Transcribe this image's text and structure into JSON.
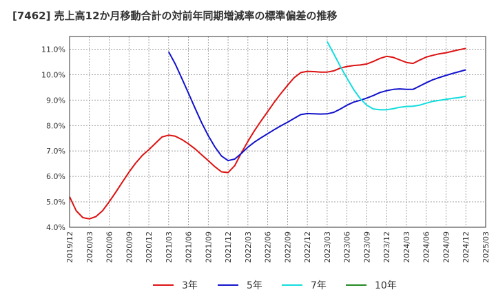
{
  "chart_data": {
    "type": "line",
    "title": "[7462]  売上高12か月移動合計の対前年同期増減率の標準偏差の推移",
    "x_ticks": [
      "2019/12",
      "2020/03",
      "2020/06",
      "2020/09",
      "2020/12",
      "2021/03",
      "2021/06",
      "2021/09",
      "2021/12",
      "2022/03",
      "2022/06",
      "2022/09",
      "2022/12",
      "2023/03",
      "2023/06",
      "2023/09",
      "2023/12",
      "2024/03",
      "2024/06",
      "2024/09",
      "2024/12",
      "2025/03"
    ],
    "y_ticks": [
      "4.0%",
      "5.0%",
      "6.0%",
      "7.0%",
      "8.0%",
      "9.0%",
      "10.0%",
      "11.0%"
    ],
    "ylim": [
      4.0,
      11.5
    ],
    "grid": true,
    "legend_position": "bottom",
    "series": [
      {
        "name": "3年",
        "color": "#dd1111",
        "x": [
          "2019/12",
          "2020/01",
          "2020/02",
          "2020/03",
          "2020/04",
          "2020/05",
          "2020/06",
          "2020/07",
          "2020/08",
          "2020/09",
          "2020/10",
          "2020/11",
          "2020/12",
          "2021/01",
          "2021/02",
          "2021/03",
          "2021/04",
          "2021/05",
          "2021/06",
          "2021/07",
          "2021/08",
          "2021/09",
          "2021/10",
          "2021/11",
          "2021/12",
          "2022/01",
          "2022/02",
          "2022/03",
          "2022/04",
          "2022/05",
          "2022/06",
          "2022/07",
          "2022/08",
          "2022/09",
          "2022/10",
          "2022/11",
          "2022/12",
          "2023/01",
          "2023/02",
          "2023/03",
          "2023/04",
          "2023/05",
          "2023/06",
          "2023/07",
          "2023/08",
          "2023/09",
          "2023/10",
          "2023/11",
          "2023/12",
          "2024/01",
          "2024/02",
          "2024/03",
          "2024/04",
          "2024/05",
          "2024/06",
          "2024/07",
          "2024/08",
          "2024/09",
          "2024/10",
          "2024/11",
          "2024/12"
        ],
        "values": [
          5.2,
          4.65,
          4.38,
          4.33,
          4.42,
          4.65,
          5.0,
          5.38,
          5.78,
          6.17,
          6.52,
          6.82,
          7.05,
          7.3,
          7.55,
          7.62,
          7.58,
          7.45,
          7.28,
          7.08,
          6.85,
          6.62,
          6.38,
          6.18,
          6.15,
          6.42,
          6.92,
          7.38,
          7.8,
          8.18,
          8.55,
          8.92,
          9.26,
          9.58,
          9.88,
          10.08,
          10.13,
          10.12,
          10.1,
          10.1,
          10.15,
          10.26,
          10.32,
          10.36,
          10.38,
          10.42,
          10.52,
          10.64,
          10.72,
          10.68,
          10.58,
          10.48,
          10.44,
          10.57,
          10.69,
          10.76,
          10.82,
          10.86,
          10.92,
          10.98,
          11.03
        ]
      },
      {
        "name": "5年",
        "color": "#1111cc",
        "x": [
          "2021/03",
          "2021/04",
          "2021/05",
          "2021/06",
          "2021/07",
          "2021/08",
          "2021/09",
          "2021/10",
          "2021/11",
          "2021/12",
          "2022/01",
          "2022/02",
          "2022/03",
          "2022/04",
          "2022/05",
          "2022/06",
          "2022/07",
          "2022/08",
          "2022/09",
          "2022/10",
          "2022/11",
          "2022/12",
          "2023/01",
          "2023/02",
          "2023/03",
          "2023/04",
          "2023/05",
          "2023/06",
          "2023/07",
          "2023/08",
          "2023/09",
          "2023/10",
          "2023/11",
          "2023/12",
          "2024/01",
          "2024/02",
          "2024/03",
          "2024/04",
          "2024/05",
          "2024/06",
          "2024/07",
          "2024/08",
          "2024/09",
          "2024/10",
          "2024/11",
          "2024/12"
        ],
        "values": [
          10.9,
          10.42,
          9.85,
          9.27,
          8.68,
          8.11,
          7.6,
          7.16,
          6.8,
          6.62,
          6.68,
          6.9,
          7.15,
          7.35,
          7.52,
          7.68,
          7.84,
          7.99,
          8.13,
          8.28,
          8.43,
          8.47,
          8.46,
          8.45,
          8.46,
          8.52,
          8.65,
          8.8,
          8.92,
          8.99,
          9.08,
          9.18,
          9.3,
          9.37,
          9.42,
          9.44,
          9.42,
          9.42,
          9.55,
          9.68,
          9.8,
          9.89,
          9.97,
          10.05,
          10.12,
          10.19
        ]
      },
      {
        "name": "7年",
        "color": "#11dddd",
        "x": [
          "2023/03",
          "2023/04",
          "2023/05",
          "2023/06",
          "2023/07",
          "2023/08",
          "2023/09",
          "2023/10",
          "2023/11",
          "2023/12",
          "2024/01",
          "2024/02",
          "2024/03",
          "2024/04",
          "2024/05",
          "2024/06",
          "2024/07",
          "2024/08",
          "2024/09",
          "2024/10",
          "2024/11",
          "2024/12"
        ],
        "values": [
          11.3,
          10.82,
          10.32,
          9.86,
          9.42,
          9.06,
          8.8,
          8.65,
          8.62,
          8.62,
          8.66,
          8.72,
          8.75,
          8.76,
          8.8,
          8.88,
          8.95,
          8.99,
          9.03,
          9.07,
          9.1,
          9.15
        ]
      },
      {
        "name": "10年",
        "color": "#228822",
        "x": [],
        "values": []
      }
    ]
  }
}
